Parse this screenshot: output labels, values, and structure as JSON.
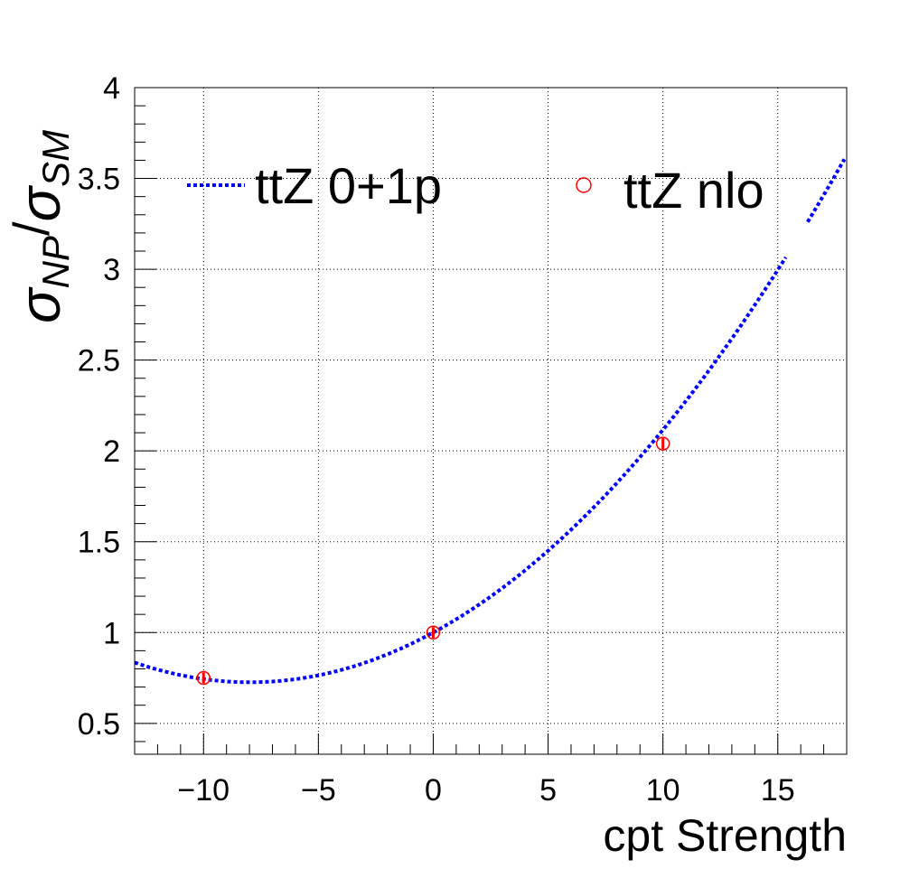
{
  "chart_data": {
    "type": "scatter",
    "xlabel": "cpt Strength",
    "ylabel": {
      "sigma": "σ",
      "sub1": "NP",
      "slash": "/",
      "sub2": "SM"
    },
    "xlim": [
      -13,
      18
    ],
    "ylim": [
      0.33,
      4
    ],
    "x_ticks": [
      {
        "v": -10,
        "label": "−10"
      },
      {
        "v": -5,
        "label": "−5"
      },
      {
        "v": 0,
        "label": "0"
      },
      {
        "v": 5,
        "label": "5"
      },
      {
        "v": 10,
        "label": "10"
      },
      {
        "v": 15,
        "label": "15"
      }
    ],
    "y_ticks": [
      {
        "v": 0.5,
        "label": "0.5"
      },
      {
        "v": 1,
        "label": "1"
      },
      {
        "v": 1.5,
        "label": "1.5"
      },
      {
        "v": 2,
        "label": "2"
      },
      {
        "v": 2.5,
        "label": "2.5"
      },
      {
        "v": 3,
        "label": "3"
      },
      {
        "v": 3.5,
        "label": "3.5"
      },
      {
        "v": 4,
        "label": "4"
      }
    ],
    "grid": true,
    "legend_placement": "top",
    "series": [
      {
        "name": "ttZ 0+1p",
        "style": "dotted-line",
        "color": "#0000ff",
        "quadratic": {
          "a": 0.0043,
          "b": 0.0686,
          "c": 1.0
        },
        "x_range": [
          -13,
          17.9
        ],
        "gaps": [
          [
            15.4,
            16.3
          ]
        ]
      },
      {
        "name": "ttZ nlo",
        "style": "open-circle",
        "color": "#ff0000",
        "points": [
          {
            "x": -10,
            "y": 0.75
          },
          {
            "x": 0,
            "y": 1.0
          },
          {
            "x": 10,
            "y": 2.04
          }
        ]
      }
    ]
  }
}
